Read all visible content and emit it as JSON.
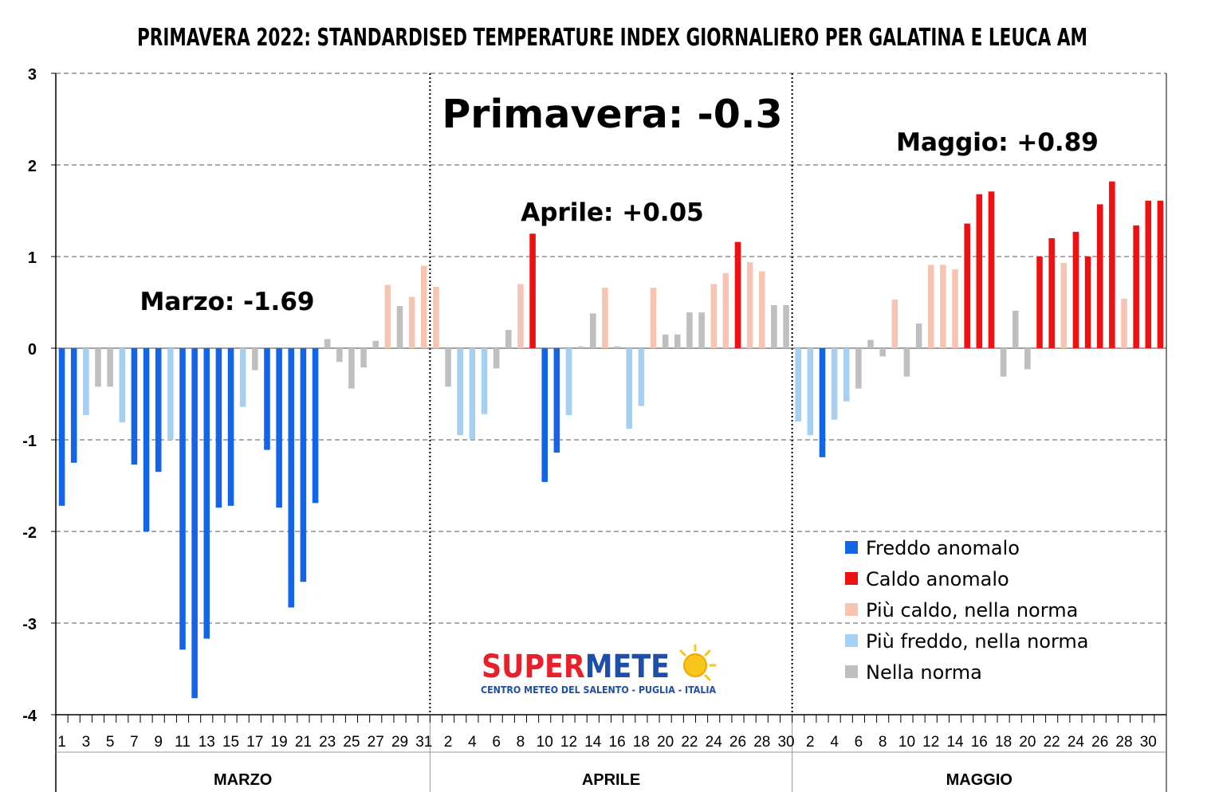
{
  "chart_data": {
    "type": "bar",
    "title": "PRIMAVERA 2022: STANDARDISED TEMPERATURE INDEX GIORNALIERO PER GALATINA E LEUCA AM",
    "ylim": [
      -4,
      3
    ],
    "yticks": [
      3,
      2,
      1,
      0,
      -1,
      -2,
      -3,
      -4
    ],
    "grid": true,
    "legend_position": "bottom-right",
    "legend": [
      {
        "key": "freddo",
        "label": "Freddo anomalo",
        "color": "#1464E8"
      },
      {
        "key": "caldo",
        "label": "Caldo anomalo",
        "color": "#EE1111"
      },
      {
        "key": "piu_caldo",
        "label": "Più caldo, nella norma",
        "color": "#F6C4B3"
      },
      {
        "key": "piu_freddo",
        "label": "Più freddo, nella norma",
        "color": "#A7CFEF"
      },
      {
        "key": "norma",
        "label": "Nella norma",
        "color": "#BFBFBF"
      }
    ],
    "season_annotation": "Primavera: -0.3",
    "months": [
      {
        "name": "MARZO",
        "annotation": "Marzo: -1.69",
        "days": 31,
        "tick_labels": [
          "1",
          "3",
          "5",
          "7",
          "9",
          "11",
          "13",
          "15",
          "17",
          "19",
          "21",
          "23",
          "25",
          "27",
          "29",
          "31"
        ],
        "values": [
          -1.72,
          -1.25,
          -0.73,
          -0.42,
          -0.42,
          -0.81,
          -1.27,
          -2.0,
          -1.35,
          -1.0,
          -3.29,
          -3.82,
          -3.17,
          -1.74,
          -1.72,
          -0.64,
          -0.24,
          -1.11,
          -1.74,
          -2.83,
          -2.55,
          -1.69,
          0.1,
          -0.15,
          -0.44,
          -0.21,
          0.08,
          0.69,
          0.46,
          0.56,
          0.9
        ],
        "categories": [
          "freddo",
          "freddo",
          "piu_freddo",
          "norma",
          "norma",
          "piu_freddo",
          "freddo",
          "freddo",
          "freddo",
          "piu_freddo",
          "freddo",
          "freddo",
          "freddo",
          "freddo",
          "freddo",
          "piu_freddo",
          "norma",
          "freddo",
          "freddo",
          "freddo",
          "freddo",
          "freddo",
          "norma",
          "norma",
          "norma",
          "norma",
          "norma",
          "piu_caldo",
          "norma",
          "piu_caldo",
          "piu_caldo"
        ]
      },
      {
        "name": "APRILE",
        "annotation": "Aprile: +0.05",
        "days": 30,
        "tick_labels": [
          "2",
          "4",
          "6",
          "8",
          "10",
          "12",
          "14",
          "16",
          "18",
          "20",
          "22",
          "24",
          "26",
          "28",
          "30"
        ],
        "values": [
          0.67,
          -0.42,
          -0.95,
          -0.99,
          -0.72,
          -0.22,
          0.2,
          0.7,
          1.25,
          -1.46,
          -1.14,
          -0.73,
          0.02,
          0.38,
          0.66,
          0.02,
          -0.88,
          -0.63,
          0.66,
          0.15,
          0.15,
          0.39,
          0.39,
          0.7,
          0.82,
          1.16,
          0.94,
          0.84,
          0.47,
          0.47
        ],
        "categories": [
          "piu_caldo",
          "norma",
          "piu_freddo",
          "piu_freddo",
          "piu_freddo",
          "norma",
          "norma",
          "piu_caldo",
          "caldo",
          "freddo",
          "freddo",
          "piu_freddo",
          "norma",
          "norma",
          "piu_caldo",
          "norma",
          "piu_freddo",
          "piu_freddo",
          "piu_caldo",
          "norma",
          "norma",
          "norma",
          "norma",
          "piu_caldo",
          "piu_caldo",
          "caldo",
          "piu_caldo",
          "piu_caldo",
          "norma",
          "norma"
        ]
      },
      {
        "name": "MAGGIO",
        "annotation": "Maggio: +0.89",
        "days": 31,
        "tick_labels": [
          "2",
          "4",
          "6",
          "8",
          "10",
          "12",
          "14",
          "16",
          "18",
          "20",
          "22",
          "24",
          "26",
          "28",
          "30"
        ],
        "values": [
          -0.8,
          -0.95,
          -1.19,
          -0.78,
          -0.58,
          -0.44,
          0.09,
          -0.09,
          0.53,
          -0.31,
          0.27,
          0.91,
          0.91,
          0.86,
          1.36,
          1.68,
          1.71,
          -0.31,
          0.41,
          -0.23,
          1.0,
          1.2,
          0.93,
          1.27,
          1.0,
          1.57,
          1.82,
          0.54,
          1.34,
          1.61,
          1.61
        ],
        "categories": [
          "piu_freddo",
          "piu_freddo",
          "freddo",
          "piu_freddo",
          "piu_freddo",
          "norma",
          "norma",
          "norma",
          "piu_caldo",
          "norma",
          "norma",
          "piu_caldo",
          "piu_caldo",
          "piu_caldo",
          "caldo",
          "caldo",
          "caldo",
          "norma",
          "norma",
          "norma",
          "caldo",
          "caldo",
          "piu_caldo",
          "caldo",
          "caldo",
          "caldo",
          "caldo",
          "piu_caldo",
          "caldo",
          "caldo",
          "caldo"
        ]
      }
    ]
  },
  "logo": {
    "brand_part1": "SUPERMETE",
    "subtitle": "CENTRO METEO DEL SALENTO - PUGLIA - ITALIA",
    "color_red": "#E8202A",
    "color_blue": "#1F4EA8",
    "color_sun": "#F7C51B"
  }
}
